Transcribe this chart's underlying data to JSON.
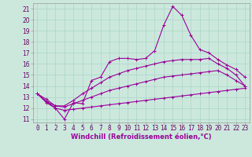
{
  "xlabel": "Windchill (Refroidissement éolien,°C)",
  "x_ticks": [
    0,
    1,
    2,
    3,
    4,
    5,
    6,
    7,
    8,
    9,
    10,
    11,
    12,
    13,
    14,
    15,
    16,
    17,
    18,
    19,
    20,
    21,
    22,
    23
  ],
  "ylim": [
    10.7,
    21.5
  ],
  "xlim": [
    -0.5,
    23.5
  ],
  "y_ticks": [
    11,
    12,
    13,
    14,
    15,
    16,
    17,
    18,
    19,
    20,
    21
  ],
  "bg_color": "#cce8dd",
  "grid_color": "#aad4c8",
  "line_color": "#990099",
  "lines": [
    [
      13.3,
      12.6,
      12.0,
      11.0,
      12.5,
      12.4,
      14.5,
      14.8,
      16.2,
      16.5,
      16.5,
      16.4,
      16.5,
      17.2,
      19.5,
      21.2,
      20.4,
      18.6,
      17.3,
      17.0,
      16.4,
      15.9,
      15.5,
      14.8
    ],
    [
      13.3,
      12.6,
      12.2,
      12.2,
      12.7,
      13.3,
      13.8,
      14.3,
      14.8,
      15.1,
      15.4,
      15.6,
      15.8,
      16.0,
      16.2,
      16.3,
      16.4,
      16.4,
      16.4,
      16.5,
      16.0,
      15.6,
      15.0,
      14.0
    ],
    [
      13.3,
      12.8,
      12.2,
      12.1,
      12.4,
      12.7,
      13.0,
      13.3,
      13.6,
      13.8,
      14.0,
      14.2,
      14.4,
      14.6,
      14.8,
      14.9,
      15.0,
      15.1,
      15.2,
      15.3,
      15.4,
      15.0,
      14.5,
      14.0
    ],
    [
      13.3,
      12.5,
      12.0,
      11.8,
      11.9,
      12.0,
      12.1,
      12.2,
      12.3,
      12.4,
      12.5,
      12.6,
      12.7,
      12.8,
      12.9,
      13.0,
      13.1,
      13.2,
      13.3,
      13.4,
      13.5,
      13.6,
      13.7,
      13.8
    ]
  ],
  "tick_fontsize": 5.5,
  "xlabel_fontsize": 6.0,
  "xlabel_color": "#990099"
}
